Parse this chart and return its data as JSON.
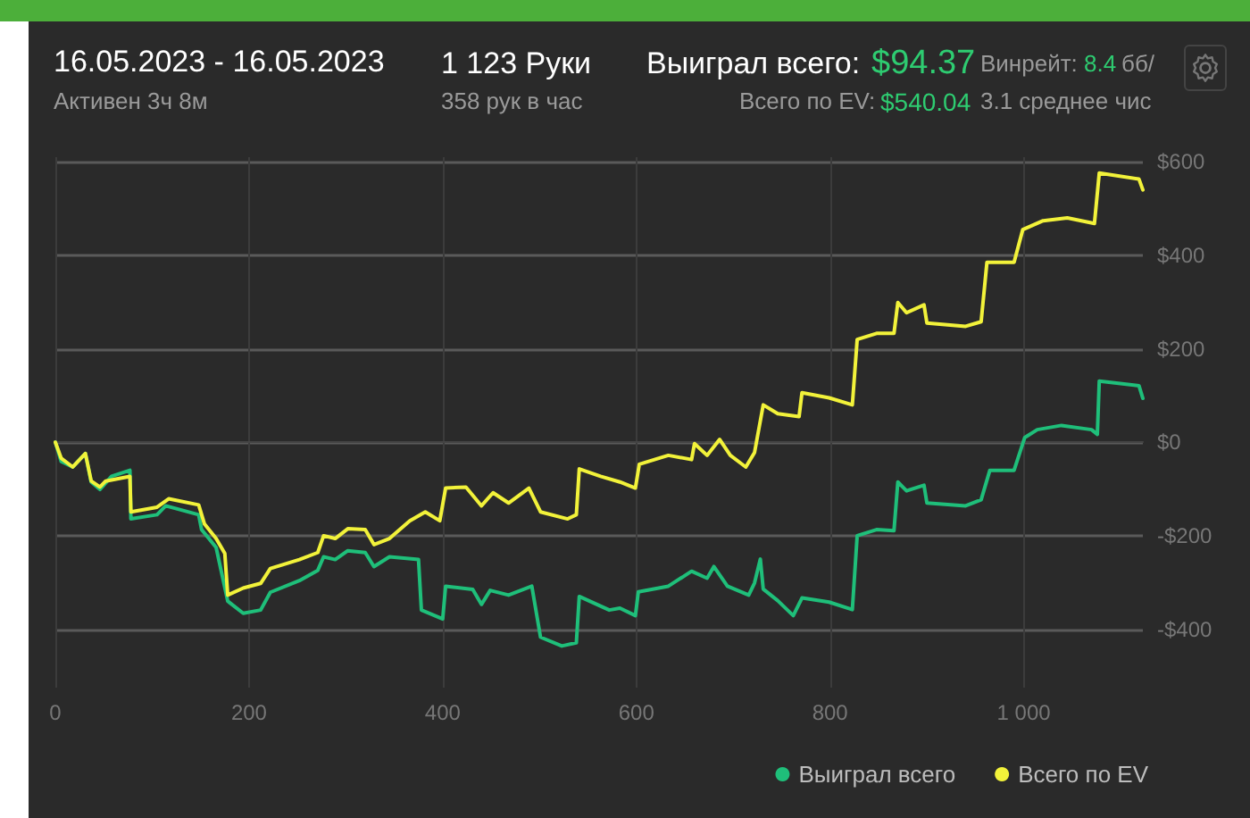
{
  "chart_data": {
    "type": "line",
    "title": "16.05.2023 - 16.05.2023",
    "subtitle": "Активен 3ч 8м",
    "annotations": [
      "1 123 Руки",
      "358 рук в час",
      "Выиграл всего:",
      "$94.37",
      "Всего по EV:",
      "$540.04",
      "Винрейт:",
      "8.4",
      "бб/",
      "3.1 среднее чис"
    ],
    "xlim": [
      0,
      1123
    ],
    "xticks": [
      0,
      200,
      400,
      600,
      800,
      {
        "value": 1000,
        "label": "1 000"
      }
    ],
    "ylim": [
      -525,
      610
    ],
    "yticks": [
      {
        "value": -400,
        "label": "-$400"
      },
      {
        "value": -200,
        "label": "-$200"
      },
      {
        "value": 0,
        "label": "$0"
      },
      {
        "value": 200,
        "label": "$200"
      },
      {
        "value": 400,
        "label": "$400"
      },
      {
        "value": 600,
        "label": "$600"
      }
    ],
    "grid": true,
    "legend": "bottom right",
    "marker": "none",
    "line_style": "solid",
    "series": [
      {
        "name": "Выиграл всего",
        "color": "#1fbf7a",
        "x": [
          0,
          6,
          18,
          31,
          37,
          46,
          58,
          77,
          78,
          105,
          114,
          148,
          151,
          166,
          178,
          194,
          212,
          222,
          252,
          271,
          277,
          289,
          302,
          320,
          329,
          345,
          375,
          378,
          400,
          403,
          431,
          440,
          449,
          468,
          492,
          501,
          523,
          538,
          541,
          572,
          583,
          599,
          602,
          633,
          657,
          673,
          680,
          694,
          716,
          722,
          728,
          731,
          746,
          762,
          771,
          799,
          823,
          828,
          848,
          866,
          870,
          879,
          897,
          900,
          940,
          956,
          965,
          990,
          1001,
          1014,
          1039,
          1070,
          1076,
          1078,
          1119,
          1123
        ],
        "values": [
          0,
          -41,
          -53,
          -24,
          -85,
          -101,
          -73,
          -60,
          -164,
          -155,
          -136,
          -155,
          -187,
          -225,
          -340,
          -366,
          -359,
          -321,
          -296,
          -274,
          -245,
          -251,
          -232,
          -236,
          -266,
          -245,
          -251,
          -359,
          -378,
          -308,
          -315,
          -347,
          -317,
          -327,
          -308,
          -417,
          -436,
          -429,
          -330,
          -359,
          -355,
          -371,
          -320,
          -308,
          -276,
          -291,
          -266,
          -308,
          -327,
          -301,
          -250,
          -314,
          -339,
          -371,
          -333,
          -342,
          -358,
          -200,
          -187,
          -189,
          -85,
          -104,
          -92,
          -130,
          -136,
          -123,
          -60,
          -60,
          10,
          27,
          36,
          27,
          17,
          131,
          121,
          94
        ]
      },
      {
        "name": "Всего по EV",
        "color": "#f2f23a",
        "x": [
          0,
          6,
          18,
          31,
          37,
          46,
          52,
          77,
          78,
          105,
          117,
          148,
          154,
          166,
          175,
          178,
          194,
          212,
          222,
          252,
          271,
          277,
          289,
          302,
          320,
          329,
          345,
          366,
          382,
          397,
          403,
          424,
          440,
          452,
          468,
          489,
          501,
          529,
          538,
          541,
          563,
          583,
          599,
          603,
          633,
          657,
          660,
          673,
          686,
          697,
          713,
          722,
          731,
          746,
          768,
          771,
          799,
          823,
          828,
          848,
          866,
          870,
          879,
          897,
          900,
          940,
          956,
          962,
          990,
          999,
          1020,
          1045,
          1073,
          1078,
          1119,
          1123
        ],
        "values": [
          0,
          -34,
          -53,
          -24,
          -83,
          -96,
          -83,
          -73,
          -149,
          -139,
          -121,
          -134,
          -175,
          -206,
          -238,
          -327,
          -312,
          -302,
          -270,
          -251,
          -236,
          -200,
          -206,
          -185,
          -187,
          -219,
          -206,
          -168,
          -149,
          -168,
          -98,
          -96,
          -136,
          -108,
          -130,
          -98,
          -149,
          -164,
          -155,
          -57,
          -73,
          -85,
          -98,
          -47,
          -28,
          -37,
          -3,
          -28,
          6,
          -28,
          -53,
          -22,
          80,
          61,
          55,
          106,
          95,
          80,
          220,
          233,
          233,
          299,
          277,
          294,
          255,
          248,
          258,
          385,
          385,
          455,
          474,
          480,
          468,
          576,
          563,
          540
        ]
      }
    ]
  }
}
